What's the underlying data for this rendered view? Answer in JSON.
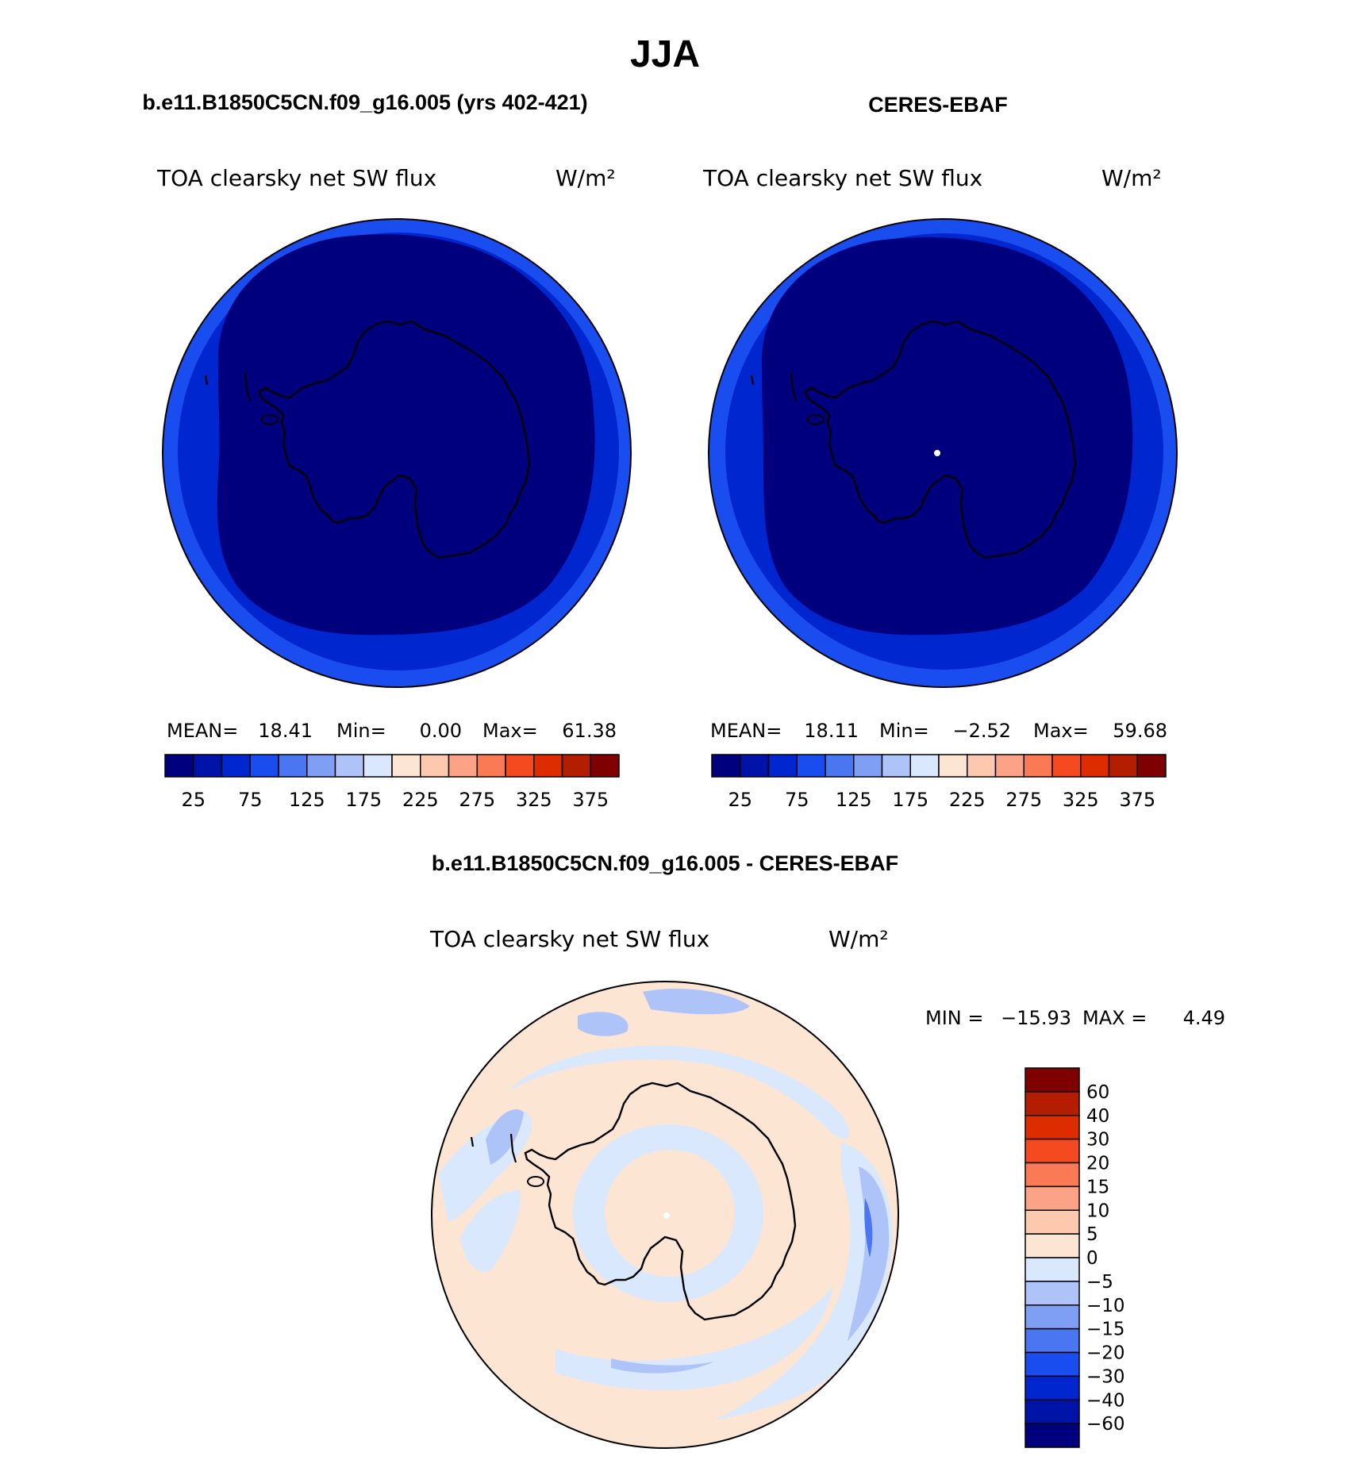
{
  "figure": {
    "title": "JJA"
  },
  "colors": {
    "level_fills": [
      "#00007f",
      "#0013a8",
      "#0026d0",
      "#1a4df0",
      "#4a76f2",
      "#7f9ff5",
      "#aec4f8",
      "#d9e8fd",
      "#fde5d3",
      "#fcc8ae",
      "#fba287",
      "#f97a55",
      "#f54a20",
      "#dd2d00",
      "#b41e00",
      "#7f0000"
    ],
    "diff_fills": [
      "#00007f",
      "#0013a8",
      "#0026d0",
      "#1a4df0",
      "#4a76f2",
      "#7f9ff5",
      "#aec4f8",
      "#d9e8fd",
      "#fde5d3",
      "#fcc8ae",
      "#fba287",
      "#f97a55",
      "#f54a20",
      "#dd2d00",
      "#b41e00",
      "#7f0000"
    ],
    "coast": "#000000"
  },
  "chart_data": [
    {
      "type": "heatmap",
      "projection": "south-polar-stereographic",
      "case_title": "b.e11.B1850C5CN.f09_g16.005 (yrs 402-421)",
      "variable": "TOA clearsky net SW flux",
      "units": "W/m²",
      "stats": {
        "mean_label": "MEAN=",
        "mean": "18.41",
        "min_label": "Min=",
        "min": "0.00",
        "max_label": "Max=",
        "max": "61.38"
      },
      "levels": [
        25,
        50,
        75,
        100,
        125,
        150,
        175,
        200,
        225,
        250,
        275,
        300,
        325,
        350,
        375
      ],
      "colorbar_tick_labels": [
        "25",
        "75",
        "125",
        "175",
        "225",
        "275",
        "325",
        "375"
      ],
      "field_rings": [
        {
          "lat_range": [
            -90,
            -55
          ],
          "value_class": "< 25"
        },
        {
          "lat_range": [
            -55,
            -48
          ],
          "value_class": "25-50"
        },
        {
          "lat_range": [
            -48,
            -40
          ],
          "value_class": "50-75"
        }
      ]
    },
    {
      "type": "heatmap",
      "projection": "south-polar-stereographic",
      "case_title": "CERES-EBAF",
      "variable": "TOA clearsky net SW flux",
      "units": "W/m²",
      "stats": {
        "mean_label": "MEAN=",
        "mean": "18.11",
        "min_label": "Min=",
        "min": "−2.52",
        "max_label": "Max=",
        "max": "59.68"
      },
      "levels": [
        25,
        50,
        75,
        100,
        125,
        150,
        175,
        200,
        225,
        250,
        275,
        300,
        325,
        350,
        375
      ],
      "colorbar_tick_labels": [
        "25",
        "75",
        "125",
        "175",
        "225",
        "275",
        "325",
        "375"
      ],
      "field_rings": [
        {
          "lat_range": [
            -90,
            -55
          ],
          "value_class": "< 25"
        },
        {
          "lat_range": [
            -55,
            -48
          ],
          "value_class": "25-50"
        },
        {
          "lat_range": [
            -48,
            -40
          ],
          "value_class": "50-75"
        }
      ]
    },
    {
      "type": "heatmap",
      "projection": "south-polar-stereographic",
      "case_title": "b.e11.B1850C5CN.f09_g16.005 - CERES-EBAF",
      "variable": "TOA clearsky net SW flux",
      "units": "W/m²",
      "stats": {
        "min_label": "MIN =",
        "min": "−15.93",
        "max_label": "MAX =",
        "max": "4.49"
      },
      "levels": [
        -60,
        -40,
        -30,
        -20,
        -15,
        -10,
        -5,
        0,
        5,
        10,
        15,
        20,
        30,
        40,
        60
      ],
      "colorbar_tick_labels": [
        "60",
        "40",
        "30",
        "20",
        "15",
        "10",
        "5",
        "0",
        "−5",
        "−10",
        "−15",
        "−20",
        "−30",
        "−40",
        "−60"
      ],
      "field_rings": [
        {
          "lat_range": [
            -90,
            -75
          ],
          "value_class": "0 to 5"
        },
        {
          "lat_range": [
            -75,
            -68
          ],
          "value_class": "-5 to 0"
        },
        {
          "lat_range": [
            -68,
            -62
          ],
          "value_class": "0 to 5"
        },
        {
          "lat_range": [
            -62,
            -55
          ],
          "value_class": "-5 to 0"
        },
        {
          "lat_range": [
            -55,
            -40
          ],
          "value_class": "0 to 5"
        }
      ]
    }
  ]
}
